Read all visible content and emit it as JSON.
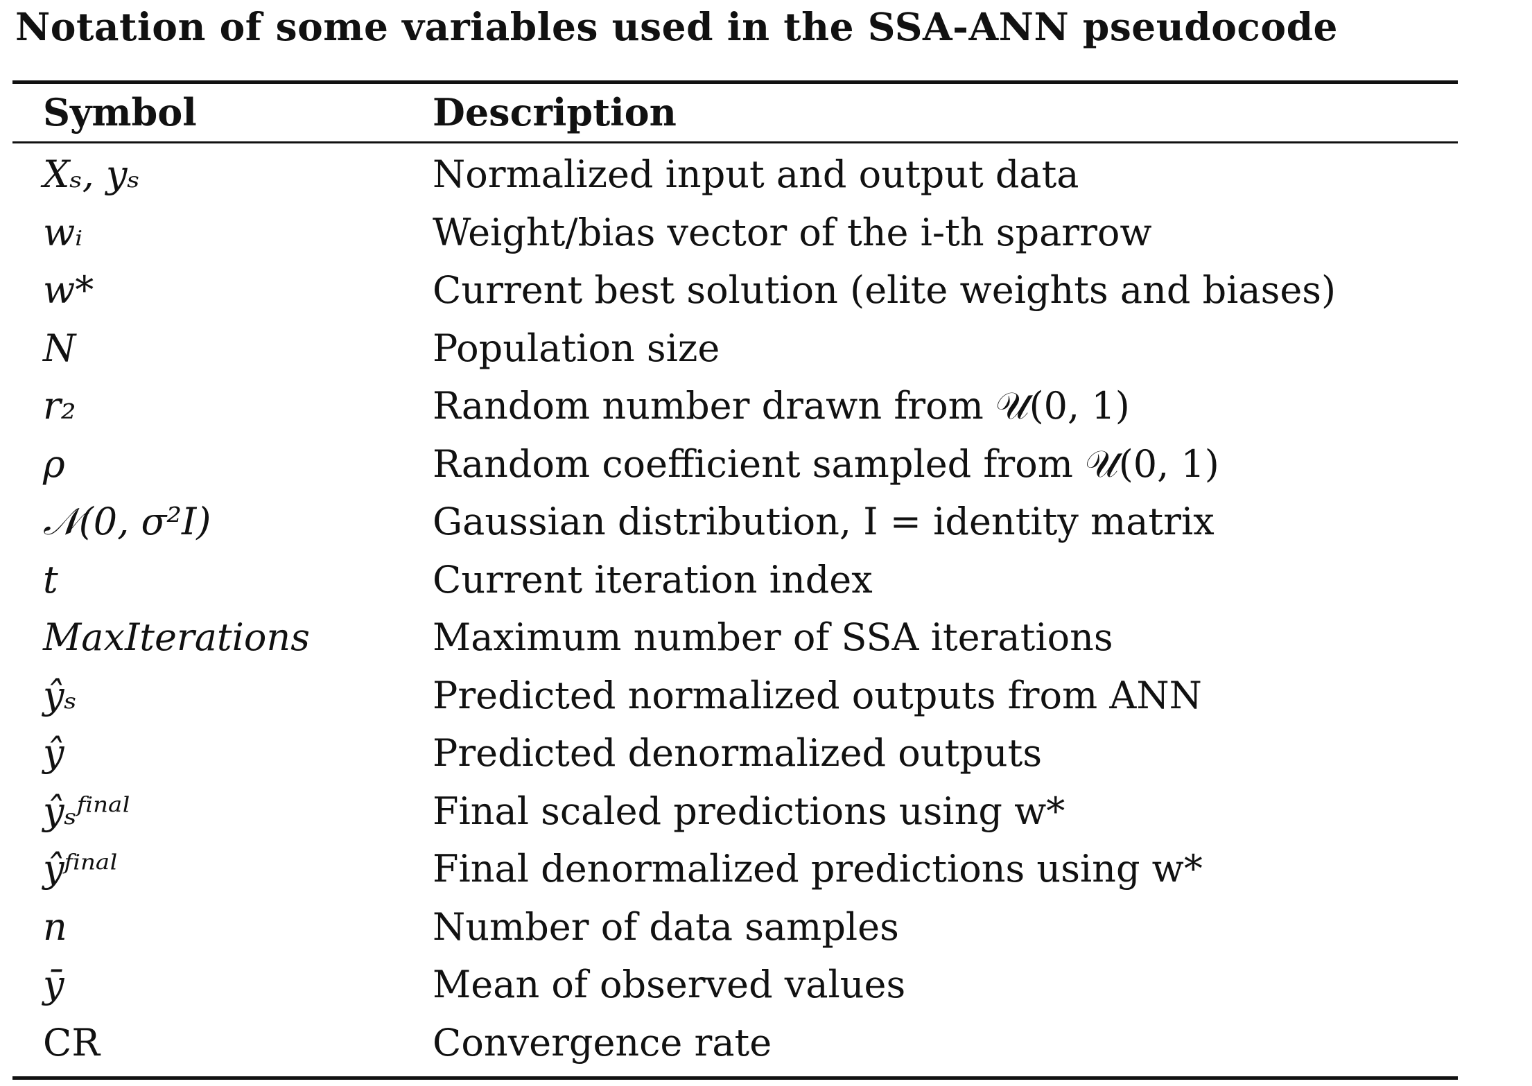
{
  "caption": "Notation of some variables used in the SSA-ANN pseudocode",
  "table": {
    "headers": {
      "symbol": "Symbol",
      "description": "Description"
    },
    "rows": [
      {
        "symbol": "Xₛ, yₛ",
        "description": "Normalized input and output data",
        "upright": false
      },
      {
        "symbol": "wᵢ",
        "description": "Weight/bias vector of the i-th sparrow",
        "upright": false
      },
      {
        "symbol": "w*",
        "description": "Current best solution (elite weights and biases)",
        "upright": false
      },
      {
        "symbol": "N",
        "description": "Population size",
        "upright": false
      },
      {
        "symbol": "r₂",
        "description": "Random number drawn from 𝒰(0, 1)",
        "upright": false
      },
      {
        "symbol": "ρ",
        "description": "Random coefficient sampled from 𝒰(0, 1)",
        "upright": false
      },
      {
        "symbol": "𝒩(0, σ²I)",
        "description": "Gaussian distribution, I = identity matrix",
        "upright": false
      },
      {
        "symbol": "t",
        "description": "Current iteration index",
        "upright": false
      },
      {
        "symbol": "MaxIterations",
        "description": "Maximum number of SSA iterations",
        "upright": false
      },
      {
        "symbol": "ŷₛ",
        "description": "Predicted normalized outputs from ANN",
        "upright": false
      },
      {
        "symbol": "ŷ",
        "description": "Predicted denormalized outputs",
        "upright": false
      },
      {
        "symbol": "ŷₛᶠⁱⁿᵃˡ",
        "description": "Final scaled predictions using w*",
        "upright": false
      },
      {
        "symbol": "ŷᶠⁱⁿᵃˡ",
        "description": "Final denormalized predictions using w*",
        "upright": false
      },
      {
        "symbol": "n",
        "description": "Number of data samples",
        "upright": false
      },
      {
        "symbol": "ȳ",
        "description": "Mean of observed values",
        "upright": false
      },
      {
        "symbol": "CR",
        "description": "Convergence rate",
        "upright": true
      }
    ]
  }
}
